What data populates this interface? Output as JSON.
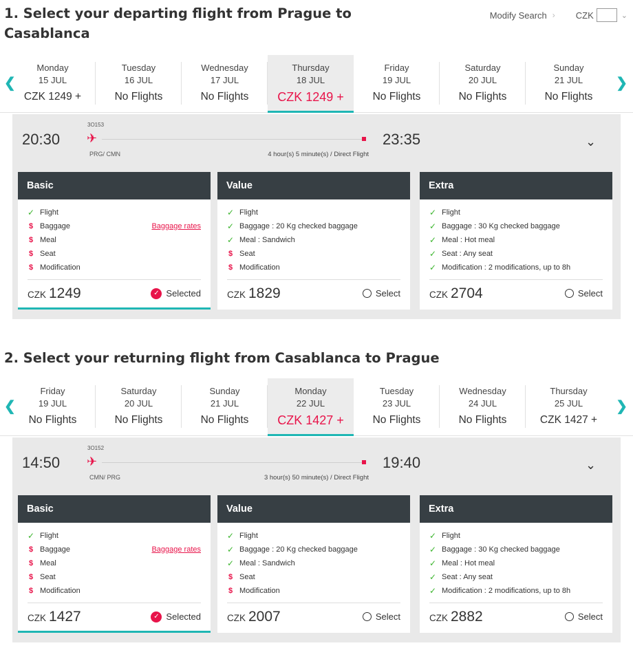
{
  "header": {
    "modify_label": "Modify Search",
    "currency_label": "CZK",
    "chevron_right": "›",
    "chevron_down": "⌄"
  },
  "colors": {
    "accent": "#1fb6b4",
    "brand_red": "#e8144a",
    "fare_header": "#373f44",
    "check_green": "#3cb52e"
  },
  "common": {
    "arrow_left": "❮",
    "arrow_right": "❯",
    "plane": "✈",
    "expand": "⌄",
    "check": "✓",
    "pay": "$",
    "selected_label": "Selected",
    "select_label": "Select",
    "currency": "CZK"
  },
  "outbound": {
    "title": "1. Select your departing flight from Prague to Casablanca",
    "days": [
      {
        "name": "Monday",
        "date": "15 JUL",
        "price": "CZK 1249 +"
      },
      {
        "name": "Tuesday",
        "date": "16 JUL",
        "price": "No Flights"
      },
      {
        "name": "Wednesday",
        "date": "17 JUL",
        "price": "No Flights"
      },
      {
        "name": "Thursday",
        "date": "18 JUL",
        "price": "CZK 1249 +"
      },
      {
        "name": "Friday",
        "date": "19 JUL",
        "price": "No Flights"
      },
      {
        "name": "Saturday",
        "date": "20 JUL",
        "price": "No Flights"
      },
      {
        "name": "Sunday",
        "date": "21 JUL",
        "price": "No Flights"
      }
    ],
    "flight": {
      "dep_time": "20:30",
      "arr_time": "23:35",
      "number": "3O153",
      "airports": "PRG/ CMN",
      "duration": "4 hour(s) 5 minute(s) / Direct Flight"
    },
    "fares": [
      {
        "name": "Basic",
        "features": [
          {
            "text": "Flight"
          },
          {
            "text": "Baggage",
            "link": "Baggage rates"
          },
          {
            "text": "Meal"
          },
          {
            "text": "Seat"
          },
          {
            "text": "Modification"
          }
        ],
        "price": "1249"
      },
      {
        "name": "Value",
        "features": [
          {
            "text": "Flight"
          },
          {
            "text": "Baggage : 20 Kg checked baggage"
          },
          {
            "text": "Meal : Sandwich"
          },
          {
            "text": "Seat"
          },
          {
            "text": "Modification"
          }
        ],
        "price": "1829"
      },
      {
        "name": "Extra",
        "features": [
          {
            "text": "Flight"
          },
          {
            "text": "Baggage : 30 Kg checked baggage"
          },
          {
            "text": "Meal : Hot meal"
          },
          {
            "text": "Seat : Any seat"
          },
          {
            "text": "Modification : 2 modifications, up to 8h"
          }
        ],
        "price": "2704"
      }
    ]
  },
  "inbound": {
    "title": "2. Select your returning flight from Casablanca to Prague",
    "days": [
      {
        "name": "Friday",
        "date": "19 JUL",
        "price": "No Flights"
      },
      {
        "name": "Saturday",
        "date": "20 JUL",
        "price": "No Flights"
      },
      {
        "name": "Sunday",
        "date": "21 JUL",
        "price": "No Flights"
      },
      {
        "name": "Monday",
        "date": "22 JUL",
        "price": "CZK 1427 +"
      },
      {
        "name": "Tuesday",
        "date": "23 JUL",
        "price": "No Flights"
      },
      {
        "name": "Wednesday",
        "date": "24 JUL",
        "price": "No Flights"
      },
      {
        "name": "Thursday",
        "date": "25 JUL",
        "price": "CZK 1427 +"
      }
    ],
    "flight": {
      "dep_time": "14:50",
      "arr_time": "19:40",
      "number": "3O152",
      "airports": "CMN/ PRG",
      "duration": "3 hour(s) 50 minute(s) / Direct Flight"
    },
    "fares": [
      {
        "name": "Basic",
        "features": [
          {
            "text": "Flight"
          },
          {
            "text": "Baggage",
            "link": "Baggage rates"
          },
          {
            "text": "Meal"
          },
          {
            "text": "Seat"
          },
          {
            "text": "Modification"
          }
        ],
        "price": "1427"
      },
      {
        "name": "Value",
        "features": [
          {
            "text": "Flight"
          },
          {
            "text": "Baggage : 20 Kg checked baggage"
          },
          {
            "text": "Meal : Sandwich"
          },
          {
            "text": "Seat"
          },
          {
            "text": "Modification"
          }
        ],
        "price": "2007"
      },
      {
        "name": "Extra",
        "features": [
          {
            "text": "Flight"
          },
          {
            "text": "Baggage : 30 Kg checked baggage"
          },
          {
            "text": "Meal : Hot meal"
          },
          {
            "text": "Seat : Any seat"
          },
          {
            "text": "Modification : 2 modifications, up to 8h"
          }
        ],
        "price": "2882"
      }
    ]
  }
}
